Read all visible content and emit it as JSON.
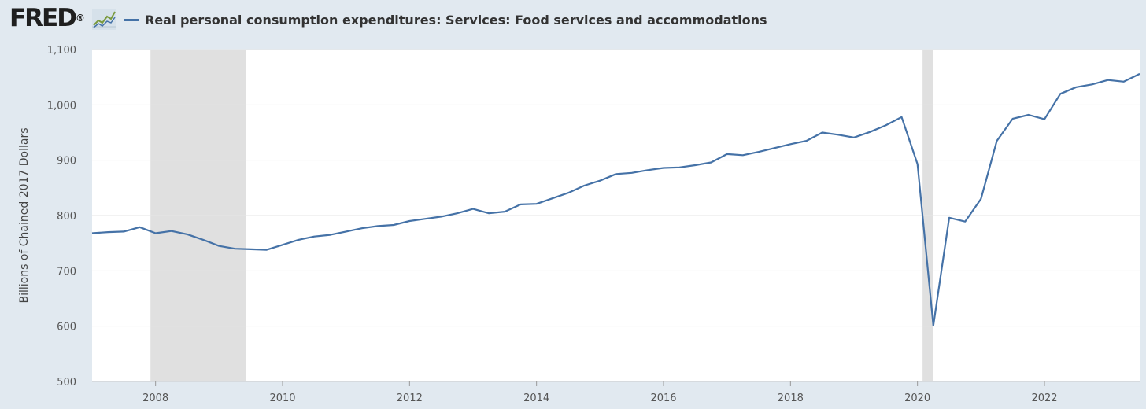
{
  "header": {
    "logo_text": "FRED",
    "logo_registered": "®",
    "logo_mark_icon": "line-chart-icon"
  },
  "chart_data": {
    "type": "line",
    "title": "",
    "xlabel": "",
    "ylabel": "Billions of Chained 2017 Dollars",
    "legend_position": "top-left",
    "grid": true,
    "xlim": [
      2007.0,
      2023.5
    ],
    "ylim": [
      500,
      1100
    ],
    "y_ticks": [
      500,
      600,
      700,
      800,
      900,
      1000,
      1100
    ],
    "y_tick_labels": [
      "500",
      "600",
      "700",
      "800",
      "900",
      "1,000",
      "1,100"
    ],
    "x_ticks": [
      2008,
      2010,
      2012,
      2014,
      2016,
      2018,
      2020,
      2022
    ],
    "x_tick_labels": [
      "2008",
      "2010",
      "2012",
      "2014",
      "2016",
      "2018",
      "2020",
      "2022"
    ],
    "recessions": [
      [
        2007.92,
        2009.42
      ],
      [
        2020.08,
        2020.25
      ]
    ],
    "colors": {
      "line": "#4572a7",
      "recession": "#e0e0e0",
      "grid": "#e6e6e6",
      "plot_bg": "#ffffff",
      "page_bg": "#e1e9f0"
    },
    "series": [
      {
        "name": "Real personal consumption expenditures: Services: Food services and accommodations",
        "x": [
          "2007-01",
          "2007-04",
          "2007-07",
          "2007-10",
          "2008-01",
          "2008-04",
          "2008-07",
          "2008-10",
          "2009-01",
          "2009-04",
          "2009-07",
          "2009-10",
          "2010-01",
          "2010-04",
          "2010-07",
          "2010-10",
          "2011-01",
          "2011-04",
          "2011-07",
          "2011-10",
          "2012-01",
          "2012-04",
          "2012-07",
          "2012-10",
          "2013-01",
          "2013-04",
          "2013-07",
          "2013-10",
          "2014-01",
          "2014-04",
          "2014-07",
          "2014-10",
          "2015-01",
          "2015-04",
          "2015-07",
          "2015-10",
          "2016-01",
          "2016-04",
          "2016-07",
          "2016-10",
          "2017-01",
          "2017-04",
          "2017-07",
          "2017-10",
          "2018-01",
          "2018-04",
          "2018-07",
          "2018-10",
          "2019-01",
          "2019-04",
          "2019-07",
          "2019-10",
          "2020-01",
          "2020-04",
          "2020-07",
          "2020-10",
          "2021-01",
          "2021-04",
          "2021-07",
          "2021-10",
          "2022-01",
          "2022-04",
          "2022-07",
          "2022-10",
          "2023-01",
          "2023-04",
          "2023-07"
        ],
        "x_num": [
          2007.0,
          2007.25,
          2007.5,
          2007.75,
          2008.0,
          2008.25,
          2008.5,
          2008.75,
          2009.0,
          2009.25,
          2009.5,
          2009.75,
          2010.0,
          2010.25,
          2010.5,
          2010.75,
          2011.0,
          2011.25,
          2011.5,
          2011.75,
          2012.0,
          2012.25,
          2012.5,
          2012.75,
          2013.0,
          2013.25,
          2013.5,
          2013.75,
          2014.0,
          2014.25,
          2014.5,
          2014.75,
          2015.0,
          2015.25,
          2015.5,
          2015.75,
          2016.0,
          2016.25,
          2016.5,
          2016.75,
          2017.0,
          2017.25,
          2017.5,
          2017.75,
          2018.0,
          2018.25,
          2018.5,
          2018.75,
          2019.0,
          2019.25,
          2019.5,
          2019.75,
          2020.0,
          2020.25,
          2020.5,
          2020.75,
          2021.0,
          2021.25,
          2021.5,
          2021.75,
          2022.0,
          2022.25,
          2022.5,
          2022.75,
          2023.0,
          2023.25,
          2023.5
        ],
        "values": [
          768,
          770,
          771,
          779,
          768,
          772,
          766,
          756,
          745,
          740,
          739,
          738,
          747,
          756,
          762,
          765,
          771,
          777,
          781,
          783,
          790,
          794,
          798,
          804,
          812,
          804,
          807,
          820,
          821,
          831,
          841,
          854,
          863,
          875,
          877,
          882,
          886,
          887,
          891,
          896,
          911,
          909,
          915,
          922,
          929,
          935,
          950,
          946,
          941,
          951,
          963,
          978,
          893,
          601,
          796,
          789,
          830,
          935,
          975,
          982,
          974,
          1020,
          1032,
          1037,
          1045,
          1042,
          1056
        ]
      }
    ]
  }
}
